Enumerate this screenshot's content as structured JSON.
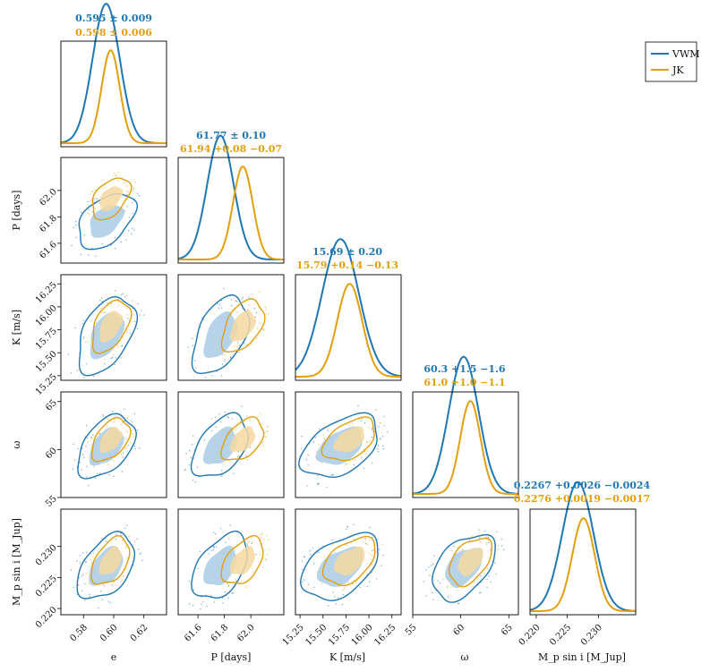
{
  "colors": {
    "vwm": "#1f77b4",
    "jk": "#e3a00e",
    "vwm_fill": "#a9cbe6",
    "jk_fill": "#f5d8a0",
    "axis": "#000000"
  },
  "legend": {
    "placement": "top-right",
    "items": [
      {
        "label": "VWM",
        "color": "#1f77b4"
      },
      {
        "label": "JK",
        "color": "#e3a00e"
      }
    ]
  },
  "chart_data": {
    "type": "corner",
    "series_names": [
      "VWM",
      "JK"
    ],
    "parameters": [
      {
        "key": "e",
        "label": "e",
        "range": [
          0.565,
          0.635
        ],
        "ticks": [
          "0.58",
          "0.60",
          "0.62"
        ],
        "tick_values": [
          0.58,
          0.6,
          0.62
        ],
        "vwm": {
          "mean": 0.595,
          "sd": 0.009
        },
        "jk": {
          "mean": 0.598,
          "sd": 0.006
        },
        "title_vwm": "0.595 ± 0.009",
        "title_jk": "0.598 ± 0.006"
      },
      {
        "key": "P",
        "label": "P [days]",
        "range": [
          61.45,
          62.25
        ],
        "ticks": [
          "61.6",
          "61.8",
          "62.0"
        ],
        "tick_values": [
          61.6,
          61.8,
          62.0
        ],
        "vwm": {
          "mean": 61.77,
          "sd": 0.1
        },
        "jk": {
          "mean": 61.94,
          "sd": 0.075
        },
        "title_vwm": "61.77 ± 0.10",
        "title_jk": "61.94 +0.08 −0.07"
      },
      {
        "key": "K",
        "label": "K [m/s]",
        "range": [
          15.2,
          16.35
        ],
        "ticks": [
          "15.25",
          "15.50",
          "15.75",
          "16.00",
          "16.25"
        ],
        "tick_values": [
          15.25,
          15.5,
          15.75,
          16.0,
          16.25
        ],
        "vwm": {
          "mean": 15.69,
          "sd": 0.2
        },
        "jk": {
          "mean": 15.79,
          "sd": 0.135
        },
        "title_vwm": "15.69 ± 0.20",
        "title_jk": "15.79 +0.14 −0.13"
      },
      {
        "key": "omega",
        "label": "ω",
        "range": [
          55,
          66
        ],
        "ticks": [
          "55",
          "60",
          "65"
        ],
        "tick_values": [
          55,
          60,
          65
        ],
        "vwm": {
          "mean": 60.3,
          "sd": 1.55
        },
        "jk": {
          "mean": 61.0,
          "sd": 1.05
        },
        "title_vwm": "60.3 +1.5 −1.6",
        "title_jk": "61.0 +1.0 −1.1"
      },
      {
        "key": "msini",
        "label": "M_p sin i [M_Jup]",
        "range": [
          0.219,
          0.236
        ],
        "ticks": [
          "0.220",
          "0.225",
          "0.230"
        ],
        "tick_values": [
          0.22,
          0.225,
          0.23
        ],
        "vwm": {
          "mean": 0.2267,
          "sd": 0.0025
        },
        "jk": {
          "mean": 0.2276,
          "sd": 0.0018
        },
        "title_vwm": "0.2267 +0.0026 −0.0024",
        "title_jk": "0.2276 +0.0019 −0.0017"
      }
    ],
    "correlation": 0.45,
    "contour_levels": [
      "1-sigma (filled)",
      "2-sigma (line)"
    ]
  }
}
